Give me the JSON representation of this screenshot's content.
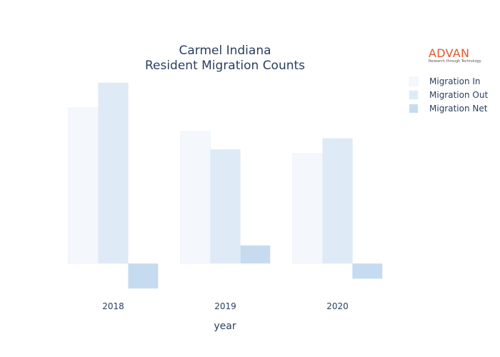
{
  "chart_data": {
    "type": "bar",
    "title_lines": [
      "Carmel Indiana",
      "Resident Migration Counts"
    ],
    "xlabel": "year",
    "ylabel": "",
    "categories": [
      "2018",
      "2019",
      "2020"
    ],
    "ylim": [
      -1800,
      13000
    ],
    "grid": false,
    "legend_position": "top-right",
    "series": [
      {
        "name": "Migration In",
        "values": [
          11200,
          9500,
          7900
        ],
        "color": "#f4f8fc"
      },
      {
        "name": "Migration Out",
        "values": [
          13000,
          8200,
          9000
        ],
        "color": "#deebf7"
      },
      {
        "name": "Migration Net",
        "values": [
          -1800,
          1300,
          -1100
        ],
        "color": "#c6dbef"
      }
    ]
  },
  "logo": {
    "name": "ADVAN",
    "tagline": "Research through Technology"
  }
}
